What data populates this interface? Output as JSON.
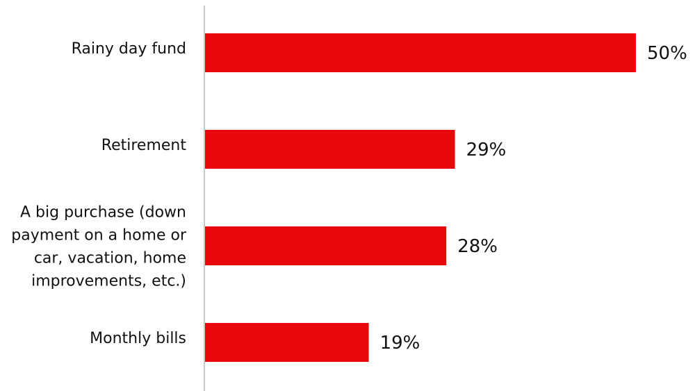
{
  "chart_data": {
    "type": "bar",
    "orientation": "horizontal",
    "categories": [
      [
        "Rainy day fund"
      ],
      [
        "Retirement"
      ],
      [
        "A big purchase (down",
        "payment on a home or",
        "car, vacation, home",
        "improvements, etc.)"
      ],
      [
        "Monthly bills"
      ]
    ],
    "values": [
      50,
      29,
      28,
      19
    ],
    "value_labels": [
      "50%",
      "29%",
      "28%",
      "19%"
    ],
    "unit": "%",
    "xlim": [
      0,
      50
    ],
    "grid": false,
    "legend": "none",
    "title": "",
    "xlabel": "",
    "ylabel": ""
  },
  "colors": {
    "bar": "#e8080a",
    "axis": "#c8c8c8",
    "text": "#111111"
  }
}
